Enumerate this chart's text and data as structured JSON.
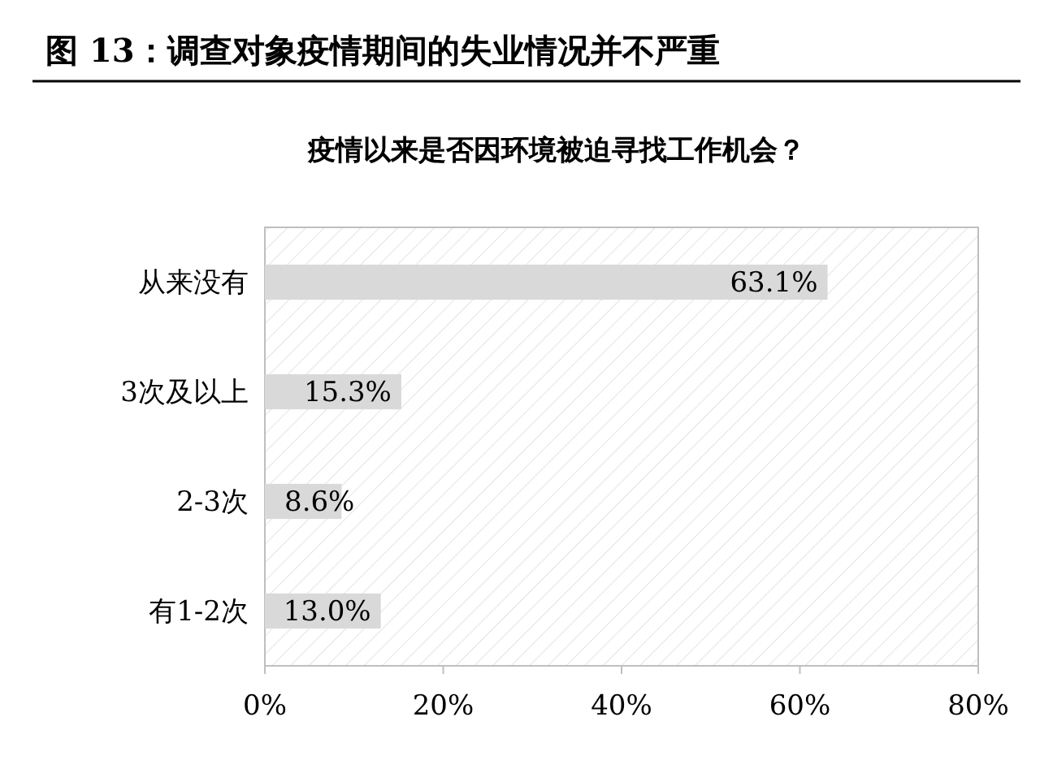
{
  "chart_data": {
    "type": "bar",
    "orientation": "horizontal",
    "title": "图 13：调查对象疫情期间的失业情况并不严重",
    "subtitle": "疫情以来是否因环境被迫寻找工作机会？",
    "categories": [
      "从来没有",
      "3次及以上",
      "2-3次",
      "有1-2次"
    ],
    "values": [
      63.1,
      15.3,
      8.6,
      13.0
    ],
    "value_labels": [
      "63.1%",
      "15.3%",
      "8.6%",
      "13.0%"
    ],
    "color": "#d9d9d9",
    "xlim": [
      0,
      80
    ],
    "xticks": [
      {
        "value": 0,
        "label": "0%"
      },
      {
        "value": 20,
        "label": "20%"
      },
      {
        "value": 40,
        "label": "40%"
      },
      {
        "value": 60,
        "label": "60%"
      },
      {
        "value": 80,
        "label": "80%"
      }
    ],
    "grid": false
  }
}
